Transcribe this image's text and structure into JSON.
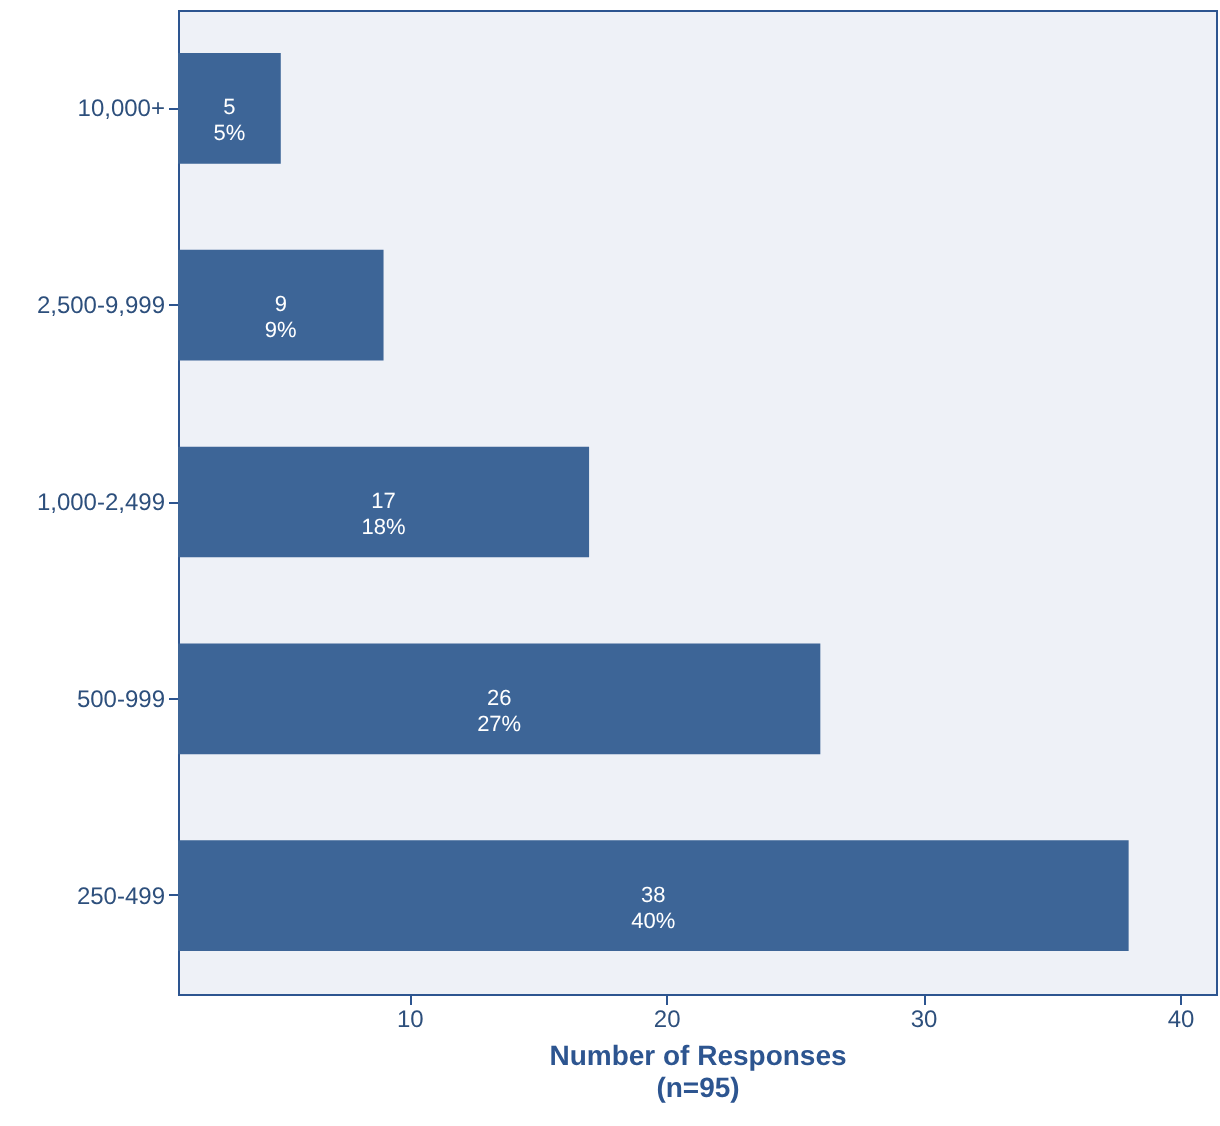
{
  "chart_data": {
    "type": "bar",
    "orientation": "horizontal",
    "xlabel": "Number of Responses\n(n=95)",
    "categories": [
      "10,000+",
      "2,500-9,999",
      "1,000-2,499",
      "500-999",
      "250-499"
    ],
    "values": [
      5,
      9,
      17,
      26,
      38
    ],
    "value_labels": [
      "5\n5%",
      "9\n9%",
      "17\n18%",
      "26\n27%",
      "38\n40%"
    ],
    "color": "#3d6597",
    "xlim": [
      1,
      41.4
    ],
    "xticks": [
      10,
      20,
      30,
      40
    ],
    "grid": false
  }
}
